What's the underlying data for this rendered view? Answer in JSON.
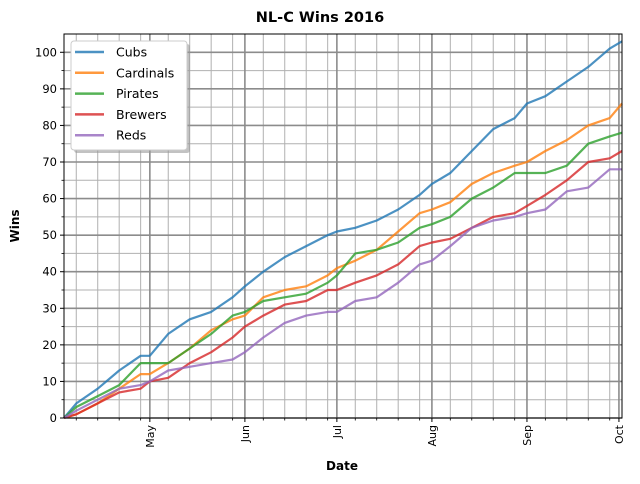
{
  "chart_data": {
    "type": "line",
    "title": "NL-C Wins 2016",
    "xlabel": "Date",
    "ylabel": "Wins",
    "ylim": [
      0,
      105
    ],
    "xlim": [
      "2016-04-03",
      "2016-10-02"
    ],
    "yticks": [
      0,
      10,
      20,
      30,
      40,
      50,
      60,
      70,
      80,
      90,
      100
    ],
    "xticks": [
      {
        "date": "2016-05-01",
        "label": "May"
      },
      {
        "date": "2016-06-01",
        "label": "Jun"
      },
      {
        "date": "2016-07-01",
        "label": "Jul"
      },
      {
        "date": "2016-08-01",
        "label": "Aug"
      },
      {
        "date": "2016-09-01",
        "label": "Sep"
      },
      {
        "date": "2016-10-01",
        "label": "Oct"
      }
    ],
    "grid": "major and minor",
    "legend_position": "top-left",
    "x": [
      "2016-04-03",
      "2016-04-07",
      "2016-04-14",
      "2016-04-21",
      "2016-04-28",
      "2016-05-01",
      "2016-05-07",
      "2016-05-14",
      "2016-05-21",
      "2016-05-28",
      "2016-06-01",
      "2016-06-07",
      "2016-06-14",
      "2016-06-21",
      "2016-06-28",
      "2016-07-01",
      "2016-07-07",
      "2016-07-14",
      "2016-07-21",
      "2016-07-28",
      "2016-08-01",
      "2016-08-07",
      "2016-08-14",
      "2016-08-21",
      "2016-08-28",
      "2016-09-01",
      "2016-09-07",
      "2016-09-14",
      "2016-09-21",
      "2016-09-28",
      "2016-10-02"
    ],
    "series": [
      {
        "name": "Cubs",
        "color": "#1f77b4",
        "values": [
          0,
          4,
          8,
          13,
          17,
          17,
          23,
          27,
          29,
          33,
          36,
          40,
          44,
          47,
          50,
          51,
          52,
          54,
          57,
          61,
          64,
          67,
          73,
          79,
          82,
          86,
          88,
          92,
          96,
          101,
          103
        ]
      },
      {
        "name": "Cardinals",
        "color": "#ff7f0e",
        "values": [
          0,
          1,
          4,
          8,
          12,
          12,
          15,
          19,
          24,
          27,
          28,
          33,
          35,
          36,
          39,
          41,
          43,
          46,
          51,
          56,
          57,
          59,
          64,
          67,
          69,
          70,
          73,
          76,
          80,
          82,
          86
        ]
      },
      {
        "name": "Pirates",
        "color": "#2ca02c",
        "values": [
          0,
          3,
          6,
          9,
          15,
          15,
          15,
          19,
          23,
          28,
          29,
          32,
          33,
          34,
          37,
          39,
          45,
          46,
          48,
          52,
          53,
          55,
          60,
          63,
          67,
          67,
          67,
          69,
          75,
          77,
          78
        ]
      },
      {
        "name": "Brewers",
        "color": "#d62728",
        "values": [
          0,
          1,
          4,
          7,
          8,
          10,
          11,
          15,
          18,
          22,
          25,
          28,
          31,
          32,
          35,
          35,
          37,
          39,
          42,
          47,
          48,
          49,
          52,
          55,
          56,
          58,
          61,
          65,
          70,
          71,
          73
        ]
      },
      {
        "name": "Reds",
        "color": "#9467bd",
        "values": [
          0,
          2,
          5,
          8,
          9,
          10,
          13,
          14,
          15,
          16,
          18,
          22,
          26,
          28,
          29,
          29,
          32,
          33,
          37,
          42,
          43,
          47,
          52,
          54,
          55,
          56,
          57,
          62,
          63,
          68,
          68
        ]
      }
    ]
  }
}
